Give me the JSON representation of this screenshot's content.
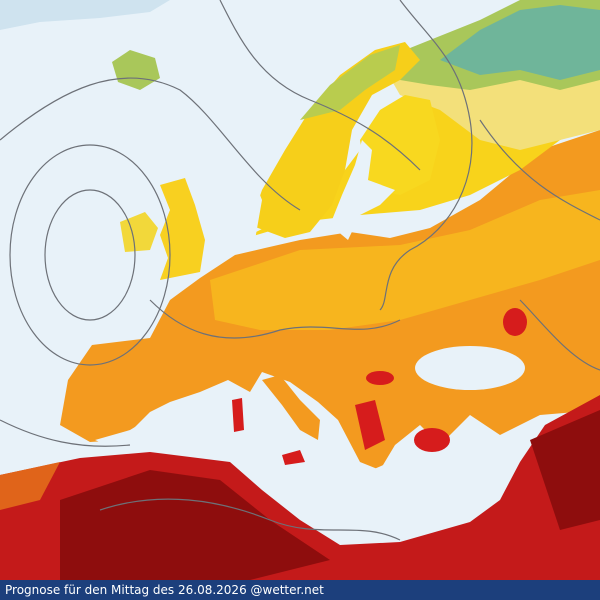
{
  "footer": {
    "caption": "Prognose für den Mittag des 26.08.2026 @wetter.net"
  }
}
